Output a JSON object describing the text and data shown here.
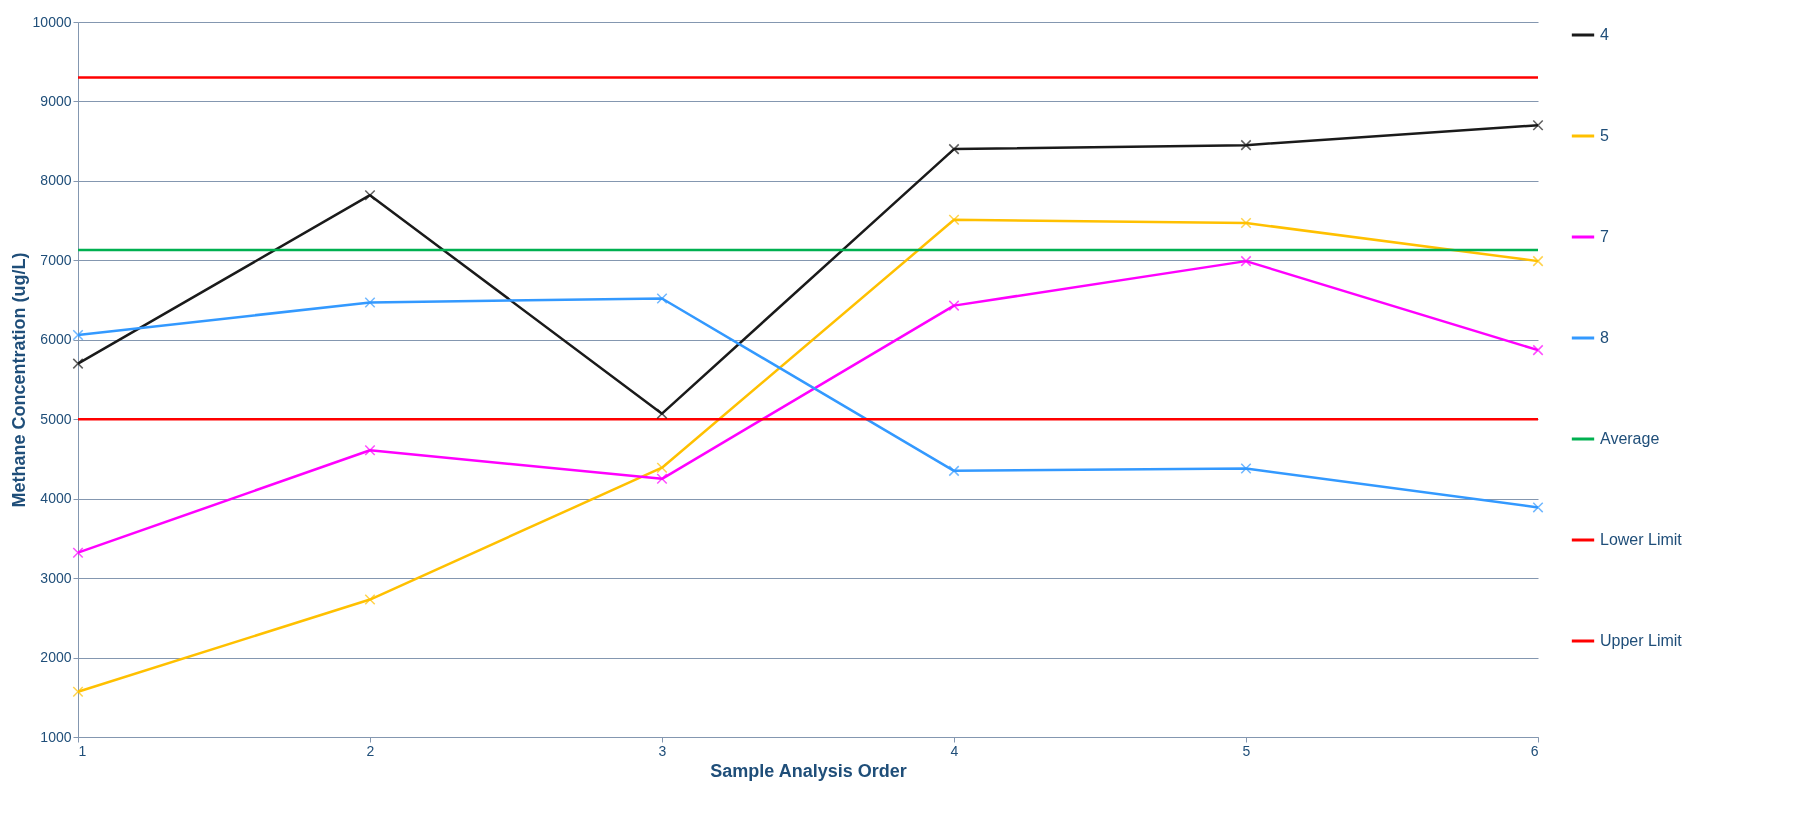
{
  "chart_data": {
    "type": "line",
    "xlabel": "Sample Analysis Order",
    "ylabel": "Methane Concentration (ug/L)",
    "x": [
      1,
      2,
      3,
      4,
      5,
      6
    ],
    "series": [
      {
        "name": "4",
        "color": "#1a1a1a",
        "marker": "cross",
        "values": [
          5700,
          7820,
          5070,
          8400,
          8450,
          8700
        ]
      },
      {
        "name": "5",
        "color": "#ffc000",
        "marker": "cross",
        "values": [
          1570,
          2730,
          4390,
          7510,
          7470,
          6990
        ]
      },
      {
        "name": "7",
        "color": "#ff00ff",
        "marker": "cross",
        "values": [
          3320,
          4610,
          4250,
          6430,
          6990,
          5870
        ]
      },
      {
        "name": "8",
        "color": "#3399ff",
        "marker": "cross",
        "values": [
          6060,
          6470,
          6520,
          4350,
          4380,
          3890
        ]
      },
      {
        "name": "Average",
        "color": "#00b050",
        "marker": "none",
        "values": [
          7130,
          7130,
          7130,
          7130,
          7130,
          7130
        ]
      },
      {
        "name": "Lower Limit",
        "color": "#ff0000",
        "marker": "none",
        "values": [
          5000,
          5000,
          5000,
          5000,
          5000,
          5000
        ]
      },
      {
        "name": "Upper Limit",
        "color": "#ff0000",
        "marker": "none",
        "values": [
          9300,
          9300,
          9300,
          9300,
          9300,
          9300
        ]
      }
    ],
    "xlim": [
      1,
      6
    ],
    "xticks": [
      1,
      2,
      3,
      4,
      5,
      6
    ],
    "ylim": [
      1000,
      10000
    ],
    "yticks": [
      1000,
      2000,
      3000,
      4000,
      5000,
      6000,
      7000,
      8000,
      9000,
      10000
    ],
    "grid": "y",
    "legend": "right",
    "line_style": "solid"
  }
}
